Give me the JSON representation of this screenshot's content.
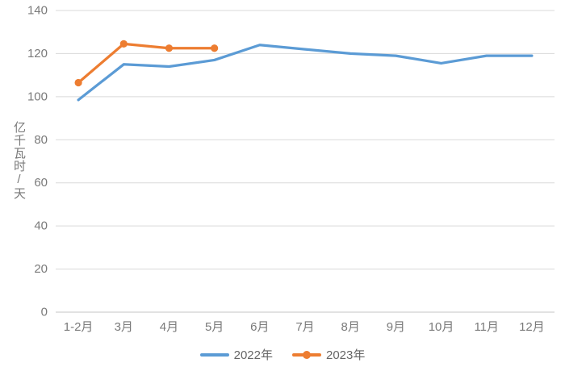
{
  "chart_data": {
    "type": "line",
    "title": "",
    "xlabel": "",
    "ylabel": "亿千瓦时/天",
    "categories": [
      "1-2月",
      "3月",
      "4月",
      "5月",
      "6月",
      "7月",
      "8月",
      "9月",
      "10月",
      "11月",
      "12月"
    ],
    "series": [
      {
        "name": "2022年",
        "color": "#5B9BD5",
        "marker": false,
        "values": [
          98.5,
          115,
          114,
          117,
          124,
          122,
          120,
          119,
          115.5,
          119,
          119
        ]
      },
      {
        "name": "2023年",
        "color": "#ED7D31",
        "marker": true,
        "values": [
          106.5,
          124.5,
          122.5,
          122.5
        ]
      }
    ],
    "ylim": [
      0,
      140
    ],
    "ystep": 20,
    "yticks": [
      0,
      20,
      40,
      60,
      80,
      100,
      120,
      140
    ],
    "grid": true,
    "legend_position": "bottom",
    "colors": {
      "axis_label": "#7a7a7a",
      "gridline": "#d9d9d9",
      "axis_line": "#c6c6c6",
      "legend_text": "#666666",
      "background": "#ffffff"
    }
  }
}
